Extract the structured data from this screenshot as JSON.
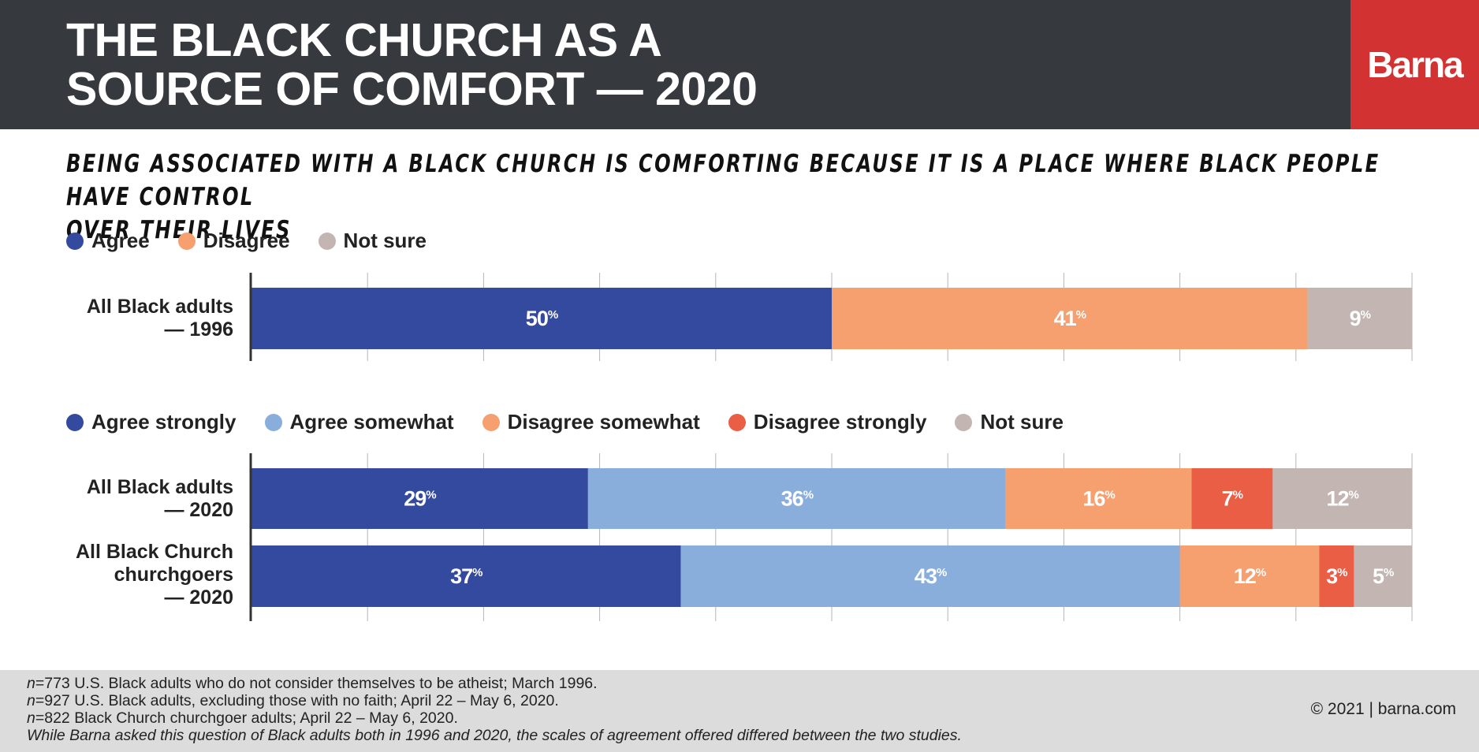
{
  "header": {
    "title_lines": [
      "THE BLACK CHURCH AS A",
      "SOURCE OF COMFORT — 2020"
    ],
    "brand": "Barna",
    "background_color": "#36393d",
    "brand_color": "#d23232"
  },
  "subtitle_lines": [
    "BEING ASSOCIATED WITH A BLACK CHURCH IS COMFORTING BECAUSE IT IS A PLACE WHERE BLACK PEOPLE HAVE CONTROL",
    "OVER THEIR LIVES"
  ],
  "legend_1996": [
    {
      "label": "Agree",
      "color": "#344a9f"
    },
    {
      "label": "Disagree",
      "color": "#f6a070"
    },
    {
      "label": "Not sure",
      "color": "#c3b5b1"
    }
  ],
  "legend_2020": [
    {
      "label": "Agree strongly",
      "color": "#344a9f"
    },
    {
      "label": "Agree somewhat",
      "color": "#8aaedc"
    },
    {
      "label": "Disagree somewhat",
      "color": "#f6a070"
    },
    {
      "label": "Disagree strongly",
      "color": "#eb5e46"
    },
    {
      "label": "Not sure",
      "color": "#c3b5b1"
    }
  ],
  "chart_data": [
    {
      "type": "bar",
      "orientation": "horizontal",
      "stacked": true,
      "categories": [
        [
          "All Black adults",
          "— 1996"
        ]
      ],
      "series": [
        {
          "name": "Agree",
          "color": "#344a9f",
          "values": [
            50
          ]
        },
        {
          "name": "Disagree",
          "color": "#f6a070",
          "values": [
            41
          ]
        },
        {
          "name": "Not sure",
          "color": "#c3b5b1",
          "values": [
            9
          ]
        }
      ],
      "xlim": [
        0,
        100
      ],
      "grid": true,
      "value_suffix": "%"
    },
    {
      "type": "bar",
      "orientation": "horizontal",
      "stacked": true,
      "categories": [
        [
          "All Black adults",
          "— 2020"
        ],
        [
          "All Black Church",
          "churchgoers",
          "— 2020"
        ]
      ],
      "series": [
        {
          "name": "Agree strongly",
          "color": "#344a9f",
          "values": [
            29,
            37
          ]
        },
        {
          "name": "Agree somewhat",
          "color": "#8aaedc",
          "values": [
            36,
            43
          ]
        },
        {
          "name": "Disagree somewhat",
          "color": "#f6a070",
          "values": [
            16,
            12
          ]
        },
        {
          "name": "Disagree strongly",
          "color": "#eb5e46",
          "values": [
            7,
            3
          ]
        },
        {
          "name": "Not sure",
          "color": "#c3b5b1",
          "values": [
            12,
            5
          ]
        }
      ],
      "xlim": [
        0,
        100
      ],
      "grid": true,
      "value_suffix": "%"
    }
  ],
  "footer": {
    "notes": [
      {
        "n": "n",
        "text": "=773 U.S. Black adults who do not consider themselves to be atheist; March 1996."
      },
      {
        "n": "n",
        "text": "=927 U.S. Black adults, excluding those with no faith; April 22 – May 6, 2020."
      },
      {
        "n": "n",
        "text": "=822 Black Church churchgoer adults; April 22 – May 6, 2020."
      }
    ],
    "disclaimer": "While Barna asked this question of Black adults both in 1996 and 2020, the scales of agreement offered differed between the two studies.",
    "copyright": "© 2021 | barna.com"
  }
}
